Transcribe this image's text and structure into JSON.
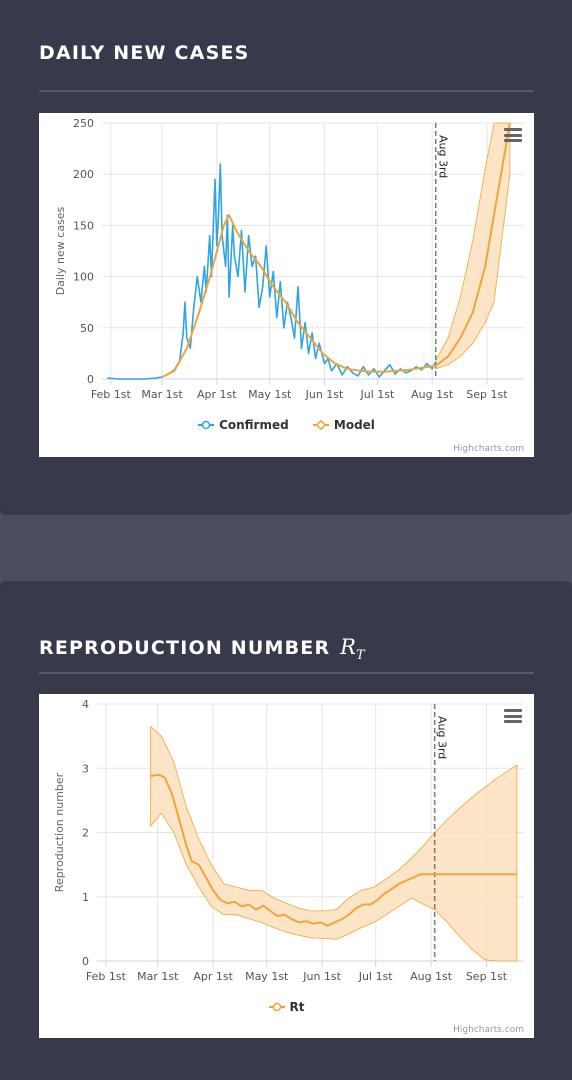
{
  "cards": [
    {
      "title": "DAILY NEW CASES"
    },
    {
      "title": "REPRODUCTION NUMBER",
      "title_math": "R",
      "title_math_sub": "T"
    }
  ],
  "credit": "Highcharts.com",
  "colors": {
    "confirmed": "#2fa5e0",
    "model": "#f0a53a",
    "band": "#fbe0bd",
    "vline": "#777777"
  },
  "chart_data": [
    {
      "type": "line",
      "ylabel": "Daily new cases",
      "ylim": [
        0,
        250
      ],
      "yticks": [
        0,
        50,
        100,
        150,
        200,
        250
      ],
      "xlim": [
        "2020-01-27",
        "2020-09-22"
      ],
      "xticks": [
        {
          "label": "Feb 1st",
          "date": "2020-02-01"
        },
        {
          "label": "Mar 1st",
          "date": "2020-03-01"
        },
        {
          "label": "Apr 1st",
          "date": "2020-04-01"
        },
        {
          "label": "May 1st",
          "date": "2020-05-01"
        },
        {
          "label": "Jun 1st",
          "date": "2020-06-01"
        },
        {
          "label": "Jul 1st",
          "date": "2020-07-01"
        },
        {
          "label": "Aug 1st",
          "date": "2020-08-01"
        },
        {
          "label": "Sep 1st",
          "date": "2020-09-01"
        }
      ],
      "annotation": {
        "label": "Aug 3rd",
        "date": "2020-08-03"
      },
      "legend": [
        "Confirmed",
        "Model"
      ],
      "series": [
        {
          "name": "Confirmed",
          "points": [
            [
              "2020-01-30",
              1
            ],
            [
              "2020-02-05",
              0
            ],
            [
              "2020-02-12",
              0
            ],
            [
              "2020-02-20",
              0
            ],
            [
              "2020-02-27",
              1
            ],
            [
              "2020-03-01",
              2
            ],
            [
              "2020-03-05",
              5
            ],
            [
              "2020-03-08",
              9
            ],
            [
              "2020-03-11",
              18
            ],
            [
              "2020-03-13",
              45
            ],
            [
              "2020-03-14",
              75
            ],
            [
              "2020-03-15",
              40
            ],
            [
              "2020-03-17",
              30
            ],
            [
              "2020-03-19",
              70
            ],
            [
              "2020-03-21",
              100
            ],
            [
              "2020-03-23",
              75
            ],
            [
              "2020-03-25",
              110
            ],
            [
              "2020-03-26",
              85
            ],
            [
              "2020-03-28",
              140
            ],
            [
              "2020-03-29",
              100
            ],
            [
              "2020-03-31",
              195
            ],
            [
              "2020-04-01",
              130
            ],
            [
              "2020-04-02",
              160
            ],
            [
              "2020-04-03",
              210
            ],
            [
              "2020-04-04",
              140
            ],
            [
              "2020-04-06",
              110
            ],
            [
              "2020-04-07",
              160
            ],
            [
              "2020-04-08",
              80
            ],
            [
              "2020-04-10",
              150
            ],
            [
              "2020-04-11",
              120
            ],
            [
              "2020-04-13",
              100
            ],
            [
              "2020-04-15",
              145
            ],
            [
              "2020-04-17",
              85
            ],
            [
              "2020-04-19",
              140
            ],
            [
              "2020-04-21",
              110
            ],
            [
              "2020-04-23",
              120
            ],
            [
              "2020-04-25",
              70
            ],
            [
              "2020-04-27",
              90
            ],
            [
              "2020-04-29",
              130
            ],
            [
              "2020-05-01",
              80
            ],
            [
              "2020-05-03",
              105
            ],
            [
              "2020-05-05",
              60
            ],
            [
              "2020-05-07",
              95
            ],
            [
              "2020-05-09",
              50
            ],
            [
              "2020-05-11",
              75
            ],
            [
              "2020-05-13",
              60
            ],
            [
              "2020-05-15",
              40
            ],
            [
              "2020-05-17",
              90
            ],
            [
              "2020-05-19",
              30
            ],
            [
              "2020-05-21",
              55
            ],
            [
              "2020-05-23",
              25
            ],
            [
              "2020-05-25",
              45
            ],
            [
              "2020-05-27",
              20
            ],
            [
              "2020-05-29",
              35
            ],
            [
              "2020-06-01",
              15
            ],
            [
              "2020-06-03",
              20
            ],
            [
              "2020-06-05",
              8
            ],
            [
              "2020-06-08",
              15
            ],
            [
              "2020-06-11",
              4
            ],
            [
              "2020-06-14",
              12
            ],
            [
              "2020-06-17",
              6
            ],
            [
              "2020-06-20",
              3
            ],
            [
              "2020-06-23",
              12
            ],
            [
              "2020-06-26",
              4
            ],
            [
              "2020-06-29",
              10
            ],
            [
              "2020-07-02",
              2
            ],
            [
              "2020-07-05",
              8
            ],
            [
              "2020-07-08",
              14
            ],
            [
              "2020-07-11",
              5
            ],
            [
              "2020-07-14",
              10
            ],
            [
              "2020-07-17",
              6
            ],
            [
              "2020-07-20",
              8
            ],
            [
              "2020-07-23",
              12
            ],
            [
              "2020-07-26",
              9
            ],
            [
              "2020-07-29",
              15
            ],
            [
              "2020-08-01",
              10
            ],
            [
              "2020-08-03",
              17
            ]
          ]
        },
        {
          "name": "Model",
          "points": [
            [
              "2020-03-01",
              2
            ],
            [
              "2020-03-08",
              8
            ],
            [
              "2020-03-15",
              30
            ],
            [
              "2020-03-22",
              65
            ],
            [
              "2020-03-29",
              105
            ],
            [
              "2020-04-05",
              150
            ],
            [
              "2020-04-08",
              160
            ],
            [
              "2020-04-12",
              145
            ],
            [
              "2020-04-19",
              125
            ],
            [
              "2020-04-26",
              110
            ],
            [
              "2020-05-03",
              90
            ],
            [
              "2020-05-10",
              75
            ],
            [
              "2020-05-17",
              55
            ],
            [
              "2020-05-24",
              40
            ],
            [
              "2020-05-31",
              25
            ],
            [
              "2020-06-07",
              15
            ],
            [
              "2020-06-14",
              10
            ],
            [
              "2020-06-21",
              8
            ],
            [
              "2020-06-28",
              7
            ],
            [
              "2020-07-05",
              7
            ],
            [
              "2020-07-12",
              8
            ],
            [
              "2020-07-19",
              9
            ],
            [
              "2020-07-26",
              11
            ],
            [
              "2020-08-03",
              13
            ],
            [
              "2020-08-10",
              22
            ],
            [
              "2020-08-17",
              40
            ],
            [
              "2020-08-24",
              65
            ],
            [
              "2020-08-31",
              110
            ],
            [
              "2020-09-07",
              180
            ],
            [
              "2020-09-14",
              250
            ]
          ]
        }
      ],
      "band": [
        [
          "2020-08-03",
          10,
          18
        ],
        [
          "2020-08-10",
          14,
          40
        ],
        [
          "2020-08-17",
          22,
          80
        ],
        [
          "2020-08-24",
          35,
          135
        ],
        [
          "2020-08-31",
          55,
          205
        ],
        [
          "2020-09-05",
          75,
          250
        ],
        [
          "2020-09-14",
          200,
          250
        ]
      ]
    },
    {
      "type": "line",
      "ylabel": "Reproduction number",
      "ylim": [
        0,
        4
      ],
      "yticks": [
        0,
        1,
        2,
        3,
        4
      ],
      "xlim": [
        "2020-01-27",
        "2020-09-22"
      ],
      "xticks": [
        {
          "label": "Feb 1st",
          "date": "2020-02-01"
        },
        {
          "label": "Mar 1st",
          "date": "2020-03-01"
        },
        {
          "label": "Apr 1st",
          "date": "2020-04-01"
        },
        {
          "label": "May 1st",
          "date": "2020-05-01"
        },
        {
          "label": "Jun 1st",
          "date": "2020-06-01"
        },
        {
          "label": "Jul 1st",
          "date": "2020-07-01"
        },
        {
          "label": "Aug 1st",
          "date": "2020-08-01"
        },
        {
          "label": "Sep 1st",
          "date": "2020-09-01"
        }
      ],
      "annotation": {
        "label": "Aug 3rd",
        "date": "2020-08-03"
      },
      "legend": [
        "Rt"
      ],
      "series": [
        {
          "name": "Rt",
          "points": [
            [
              "2020-02-26",
              2.88
            ],
            [
              "2020-03-02",
              2.9
            ],
            [
              "2020-03-05",
              2.85
            ],
            [
              "2020-03-09",
              2.6
            ],
            [
              "2020-03-13",
              2.2
            ],
            [
              "2020-03-17",
              1.8
            ],
            [
              "2020-03-20",
              1.55
            ],
            [
              "2020-03-24",
              1.5
            ],
            [
              "2020-03-28",
              1.3
            ],
            [
              "2020-04-01",
              1.1
            ],
            [
              "2020-04-05",
              0.95
            ],
            [
              "2020-04-09",
              0.9
            ],
            [
              "2020-04-13",
              0.92
            ],
            [
              "2020-04-17",
              0.85
            ],
            [
              "2020-04-21",
              0.88
            ],
            [
              "2020-04-25",
              0.8
            ],
            [
              "2020-04-29",
              0.86
            ],
            [
              "2020-05-03",
              0.78
            ],
            [
              "2020-05-07",
              0.7
            ],
            [
              "2020-05-11",
              0.72
            ],
            [
              "2020-05-15",
              0.65
            ],
            [
              "2020-05-19",
              0.6
            ],
            [
              "2020-05-23",
              0.62
            ],
            [
              "2020-05-27",
              0.58
            ],
            [
              "2020-05-31",
              0.6
            ],
            [
              "2020-06-04",
              0.55
            ],
            [
              "2020-06-08",
              0.6
            ],
            [
              "2020-06-12",
              0.65
            ],
            [
              "2020-06-16",
              0.72
            ],
            [
              "2020-06-20",
              0.82
            ],
            [
              "2020-06-24",
              0.88
            ],
            [
              "2020-06-28",
              0.88
            ],
            [
              "2020-07-02",
              0.95
            ],
            [
              "2020-07-06",
              1.05
            ],
            [
              "2020-07-10",
              1.12
            ],
            [
              "2020-07-14",
              1.2
            ],
            [
              "2020-07-18",
              1.25
            ],
            [
              "2020-07-22",
              1.3
            ],
            [
              "2020-07-26",
              1.35
            ],
            [
              "2020-08-03",
              1.35
            ],
            [
              "2020-09-18",
              1.35
            ]
          ]
        }
      ],
      "band": [
        [
          "2020-02-26",
          2.1,
          3.65
        ],
        [
          "2020-03-03",
          2.3,
          3.5
        ],
        [
          "2020-03-10",
          2.0,
          3.1
        ],
        [
          "2020-03-17",
          1.5,
          2.4
        ],
        [
          "2020-03-24",
          1.15,
          1.9
        ],
        [
          "2020-03-31",
          0.85,
          1.5
        ],
        [
          "2020-04-07",
          0.72,
          1.2
        ],
        [
          "2020-04-14",
          0.72,
          1.15
        ],
        [
          "2020-04-21",
          0.66,
          1.1
        ],
        [
          "2020-04-28",
          0.6,
          1.1
        ],
        [
          "2020-05-05",
          0.52,
          0.98
        ],
        [
          "2020-05-12",
          0.45,
          0.9
        ],
        [
          "2020-05-19",
          0.4,
          0.82
        ],
        [
          "2020-05-26",
          0.36,
          0.78
        ],
        [
          "2020-06-02",
          0.35,
          0.78
        ],
        [
          "2020-06-09",
          0.34,
          0.8
        ],
        [
          "2020-06-16",
          0.42,
          0.98
        ],
        [
          "2020-06-23",
          0.52,
          1.1
        ],
        [
          "2020-06-30",
          0.6,
          1.15
        ],
        [
          "2020-07-07",
          0.72,
          1.28
        ],
        [
          "2020-07-14",
          0.85,
          1.42
        ],
        [
          "2020-07-21",
          0.98,
          1.6
        ],
        [
          "2020-07-28",
          0.88,
          1.8
        ],
        [
          "2020-08-03",
          0.8,
          2.0
        ],
        [
          "2020-08-10",
          0.6,
          2.2
        ],
        [
          "2020-08-17",
          0.38,
          2.38
        ],
        [
          "2020-08-24",
          0.18,
          2.55
        ],
        [
          "2020-08-31",
          0.02,
          2.7
        ],
        [
          "2020-09-07",
          0.0,
          2.85
        ],
        [
          "2020-09-18",
          0.0,
          3.05
        ]
      ]
    }
  ]
}
